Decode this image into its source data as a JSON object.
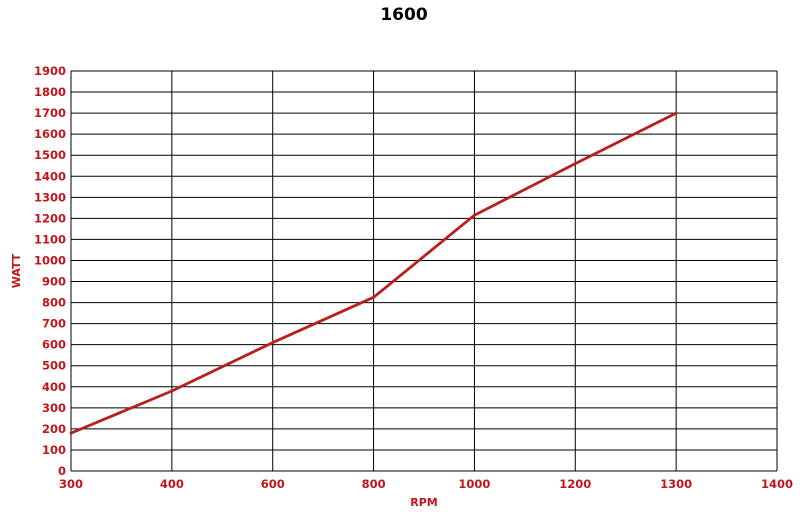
{
  "chart_data": {
    "type": "line",
    "title": "1600",
    "xlabel": "RPM",
    "ylabel": "WATT",
    "x_categories": [
      "300",
      "400",
      "600",
      "800",
      "1000",
      "1200",
      "1300",
      "1400"
    ],
    "yticks": [
      0,
      100,
      200,
      300,
      400,
      500,
      600,
      700,
      800,
      900,
      1000,
      1100,
      1200,
      1300,
      1400,
      1500,
      1600,
      1700,
      1800,
      1900
    ],
    "ylim": [
      0,
      1900
    ],
    "grid": true,
    "series": [
      {
        "x": [
          "300",
          "400",
          "600",
          "800",
          "1000",
          "1200",
          "1300"
        ],
        "values": [
          180,
          380,
          610,
          825,
          1215,
          1460,
          1700
        ],
        "color": "#b82020"
      }
    ],
    "colors": {
      "label": "#c0151b",
      "grid": "#000000",
      "line": "#b82020"
    }
  }
}
